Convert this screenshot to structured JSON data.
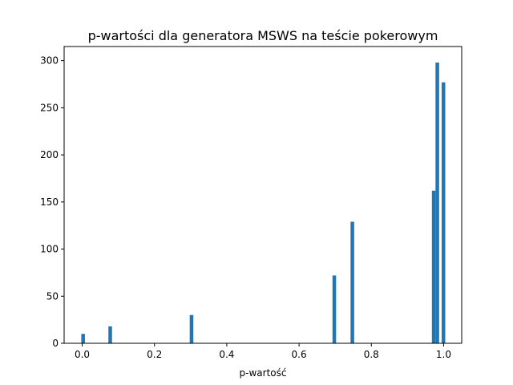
{
  "chart_data": {
    "type": "bar",
    "title": "p-wartości dla generatora MSWS na teście pokerowym",
    "xlabel": "p-wartość",
    "ylabel": "",
    "xlim": [
      -0.05,
      1.05
    ],
    "ylim": [
      0,
      315
    ],
    "x_ticks": [
      0.0,
      0.2,
      0.4,
      0.6,
      0.8,
      1.0
    ],
    "x_tick_labels": [
      "0.0",
      "0.2",
      "0.4",
      "0.6",
      "0.8",
      "1.0"
    ],
    "y_ticks": [
      0,
      50,
      100,
      150,
      200,
      250,
      300
    ],
    "y_tick_labels": [
      "0",
      "50",
      "100",
      "150",
      "200",
      "250",
      "300"
    ],
    "bin_width": 0.01,
    "bars": [
      {
        "x": 0.0025,
        "value": 10
      },
      {
        "x": 0.0775,
        "value": 18
      },
      {
        "x": 0.3025,
        "value": 30
      },
      {
        "x": 0.6975,
        "value": 72
      },
      {
        "x": 0.7475,
        "value": 129
      },
      {
        "x": 0.9725,
        "value": 162
      },
      {
        "x": 0.9825,
        "value": 298
      },
      {
        "x": 0.9995,
        "value": 277
      }
    ],
    "grid": false,
    "color": "#1f77b4"
  }
}
